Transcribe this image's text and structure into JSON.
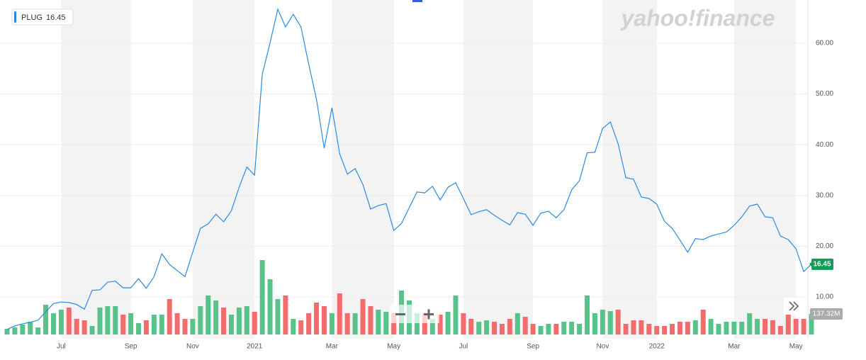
{
  "chart_data": {
    "type": "line",
    "ticker": "PLUG",
    "watermark": "yahoo!finance",
    "categories": [
      null,
      null,
      null,
      null,
      null,
      null,
      null,
      "Jul",
      null,
      null,
      null,
      null,
      null,
      null,
      null,
      null,
      "Sep",
      null,
      null,
      null,
      null,
      null,
      null,
      null,
      "Nov",
      null,
      null,
      null,
      null,
      null,
      null,
      null,
      "2021",
      null,
      null,
      null,
      null,
      null,
      null,
      null,
      null,
      null,
      "Mar",
      null,
      null,
      null,
      null,
      null,
      null,
      null,
      "May",
      null,
      null,
      null,
      null,
      null,
      null,
      null,
      null,
      "Jul",
      null,
      null,
      null,
      null,
      null,
      null,
      null,
      null,
      "Sep",
      null,
      null,
      null,
      null,
      null,
      null,
      null,
      null,
      "Nov",
      null,
      null,
      null,
      null,
      null,
      null,
      "2022",
      null,
      null,
      null,
      null,
      null,
      null,
      null,
      null,
      null,
      "Mar",
      null,
      null,
      null,
      null,
      null,
      null,
      null,
      "May",
      null,
      null
    ],
    "series": [
      {
        "name": "PLUG",
        "color": "#2a8ae3",
        "values": [
          3.6,
          4.3,
          4.7,
          5.0,
          5.4,
          7.1,
          8.7,
          9.0,
          8.9,
          8.5,
          7.6,
          11.3,
          11.4,
          12.9,
          13.1,
          11.8,
          11.8,
          13.6,
          11.7,
          14.0,
          18.5,
          16.4,
          15.2,
          14.0,
          18.8,
          23.5,
          24.4,
          26.3,
          24.8,
          27.0,
          31.6,
          35.6,
          34.0,
          53.9,
          60.1,
          66.7,
          63.2,
          65.7,
          63.2,
          55.9,
          49.0,
          39.3,
          47.3,
          38.2,
          34.2,
          35.3,
          32.2,
          27.3,
          28.0,
          28.4,
          23.1,
          24.5,
          27.6,
          30.7,
          30.5,
          31.8,
          29.1,
          31.6,
          32.5,
          29.4,
          26.2,
          26.8,
          27.2,
          26.1,
          25.1,
          24.2,
          26.6,
          26.3,
          24.1,
          26.5,
          26.9,
          25.6,
          27.2,
          31.1,
          32.9,
          38.4,
          38.5,
          43.2,
          44.5,
          40.2,
          33.5,
          33.2,
          29.7,
          29.4,
          28.3,
          24.9,
          23.5,
          21.2,
          18.8,
          21.5,
          21.3,
          22.0,
          22.4,
          22.8,
          24.1,
          25.8,
          27.9,
          28.3,
          25.8,
          25.6,
          22.0,
          21.3,
          19.5,
          15.0,
          16.45
        ],
        "tag_color": "#0f9d58"
      },
      {
        "type": "bar",
        "axis": "y2",
        "up_color": "#57c38a",
        "down_color": "#f26c6c",
        "values": [
          37.8,
          47.3,
          66.2,
          85.1,
          47.3,
          198.7,
          141.9,
          165.6,
          179.7,
          104.1,
          94.6,
          56.8,
          179.7,
          189.2,
          189.2,
          132.4,
          141.9,
          75.7,
          94.6,
          132.4,
          132.4,
          236.5,
          141.9,
          104.1,
          104.1,
          189.2,
          260.2,
          227.0,
          179.7,
          132.4,
          179.7,
          189.2,
          151.4,
          496.7,
          368.9,
          236.5,
          260.2,
          104.1,
          94.6,
          141.9,
          212.9,
          189.2,
          141.9,
          274.3,
          141.9,
          141.9,
          236.5,
          189.2,
          165.6,
          151.4,
          141.9,
          293.3,
          227.0,
          141.9,
          141.9,
          104.1,
          132.4,
          151.4,
          260.2,
          141.9,
          104.1,
          85.1,
          94.6,
          85.1,
          71.0,
          104.1,
          141.9,
          118.3,
          71.0,
          56.8,
          71.0,
          71.0,
          85.1,
          85.1,
          71.0,
          260.2,
          141.9,
          165.6,
          156.1,
          165.6,
          71.0,
          94.6,
          94.6,
          71.0,
          56.8,
          56.8,
          71.0,
          85.1,
          85.1,
          94.6,
          165.6,
          104.1,
          71.0,
          85.1,
          85.1,
          85.1,
          141.9,
          104.1,
          104.1,
          94.6,
          56.8,
          141.9,
          104.1,
          104.1,
          137.32
        ],
        "value_labels": [
          null,
          null,
          null,
          null,
          null,
          null,
          null,
          null,
          null,
          null,
          null,
          null,
          null,
          null,
          null,
          null,
          null,
          null,
          null,
          null,
          null,
          null,
          null,
          null,
          null,
          null,
          null,
          null,
          null,
          null,
          null,
          null,
          null,
          null,
          null,
          null,
          null,
          null,
          null,
          null,
          null,
          null,
          null,
          null,
          null,
          null,
          null,
          null,
          null,
          null,
          null,
          null,
          null,
          null,
          null,
          null,
          null,
          null,
          null,
          null,
          null,
          null,
          null,
          null,
          null,
          null,
          null,
          null,
          null,
          null,
          null,
          null,
          null,
          null,
          null,
          null,
          null,
          null,
          null,
          null,
          null,
          null,
          null,
          null,
          null,
          null,
          null,
          null,
          null,
          null,
          null,
          null,
          null,
          null,
          null,
          null,
          null,
          null,
          null,
          null,
          null,
          null,
          null,
          null,
          "137.32M"
        ]
      }
    ],
    "ylim": [
      1.76,
      68.52
    ],
    "yticks": [
      {
        "value": 10,
        "label": "10.00"
      },
      {
        "value": 20,
        "label": "20.00"
      },
      {
        "value": 30,
        "label": "30.00"
      },
      {
        "value": 40,
        "label": "40.00"
      },
      {
        "value": 50,
        "label": "50.00"
      },
      {
        "value": 60,
        "label": "60.00"
      }
    ],
    "y2lim": [
      0,
      2232
    ],
    "grid": true,
    "band_color": "#f3f3f3"
  }
}
